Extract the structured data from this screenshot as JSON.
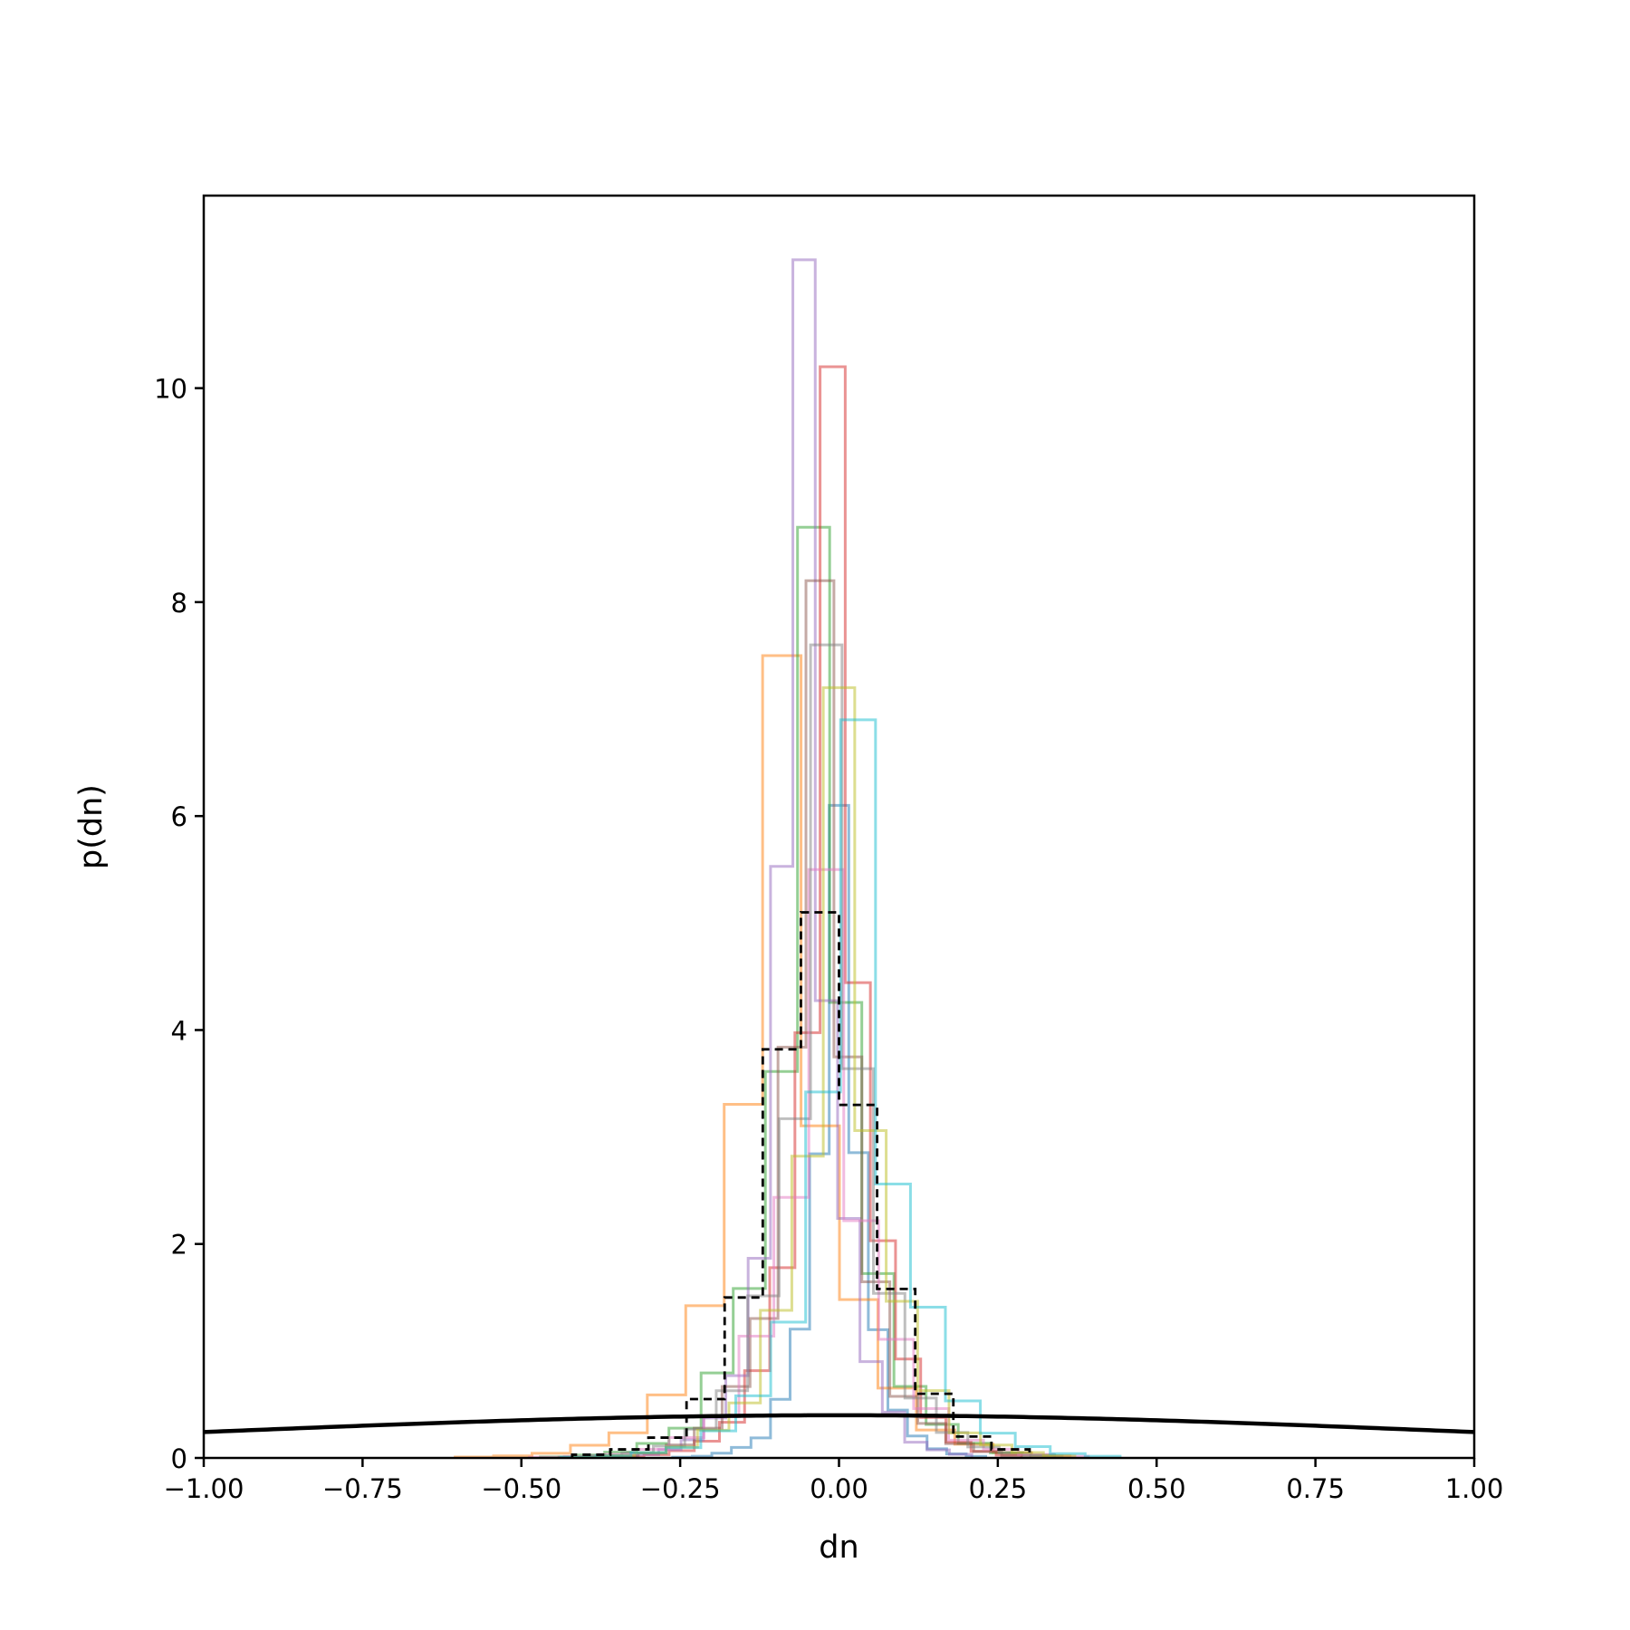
{
  "chart_data": {
    "type": "histogram",
    "xlabel": "dn",
    "ylabel": "p(dn)",
    "xlim": [
      -1.0,
      1.0
    ],
    "ylim": [
      0,
      11.8
    ],
    "xticks": [
      -1.0,
      -0.75,
      -0.5,
      -0.25,
      0.0,
      0.25,
      0.5,
      0.75,
      1.0
    ],
    "xtick_labels": [
      "−1.00",
      "−0.75",
      "−0.50",
      "−0.25",
      "0.00",
      "0.25",
      "0.50",
      "0.75",
      "1.00"
    ],
    "yticks": [
      0,
      2,
      4,
      6,
      8,
      10
    ],
    "ytick_labels": [
      "0",
      "2",
      "4",
      "6",
      "8",
      "10"
    ],
    "grid": false,
    "legend": "none",
    "series": [
      {
        "style": "step",
        "color": "#1f77b4",
        "center": 0.0,
        "width": 0.028,
        "peak": 6.1,
        "seed": 1
      },
      {
        "style": "step",
        "color": "#ff7f0e",
        "center": -0.09,
        "width": 0.055,
        "peak": 7.5,
        "seed": 2
      },
      {
        "style": "step",
        "color": "#2ca02c",
        "center": -0.04,
        "width": 0.046,
        "peak": 8.7,
        "seed": 3
      },
      {
        "style": "step",
        "color": "#d62728",
        "center": -0.01,
        "width": 0.036,
        "peak": 10.2,
        "seed": 4
      },
      {
        "style": "step",
        "color": "#9467bd",
        "center": -0.055,
        "width": 0.032,
        "peak": 11.2,
        "seed": 5
      },
      {
        "style": "step",
        "color": "#8c564b",
        "center": -0.03,
        "width": 0.04,
        "peak": 8.2,
        "seed": 6
      },
      {
        "style": "step",
        "color": "#e377c2",
        "center": -0.02,
        "width": 0.05,
        "peak": 5.5,
        "seed": 7
      },
      {
        "style": "step",
        "color": "#7f7f7f",
        "center": -0.02,
        "width": 0.045,
        "peak": 7.6,
        "seed": 8
      },
      {
        "style": "step",
        "color": "#bcbd22",
        "center": 0.0,
        "width": 0.045,
        "peak": 7.2,
        "seed": 9
      },
      {
        "style": "step",
        "color": "#17becf",
        "center": 0.03,
        "width": 0.05,
        "peak": 6.9,
        "seed": 10
      },
      {
        "style": "dashed-step",
        "color": "#000000",
        "bins": [
          -0.42,
          -0.36,
          -0.3,
          -0.24,
          -0.18,
          -0.12,
          -0.06,
          0.0,
          0.06,
          0.12,
          0.18,
          0.24,
          0.3
        ],
        "values": [
          0.03,
          0.08,
          0.19,
          0.55,
          1.5,
          3.82,
          5.1,
          3.3,
          1.58,
          0.6,
          0.2,
          0.08
        ]
      },
      {
        "style": "line",
        "color": "#000000",
        "distribution": "normal",
        "mean": 0.0,
        "sd": 1.0
      }
    ]
  }
}
